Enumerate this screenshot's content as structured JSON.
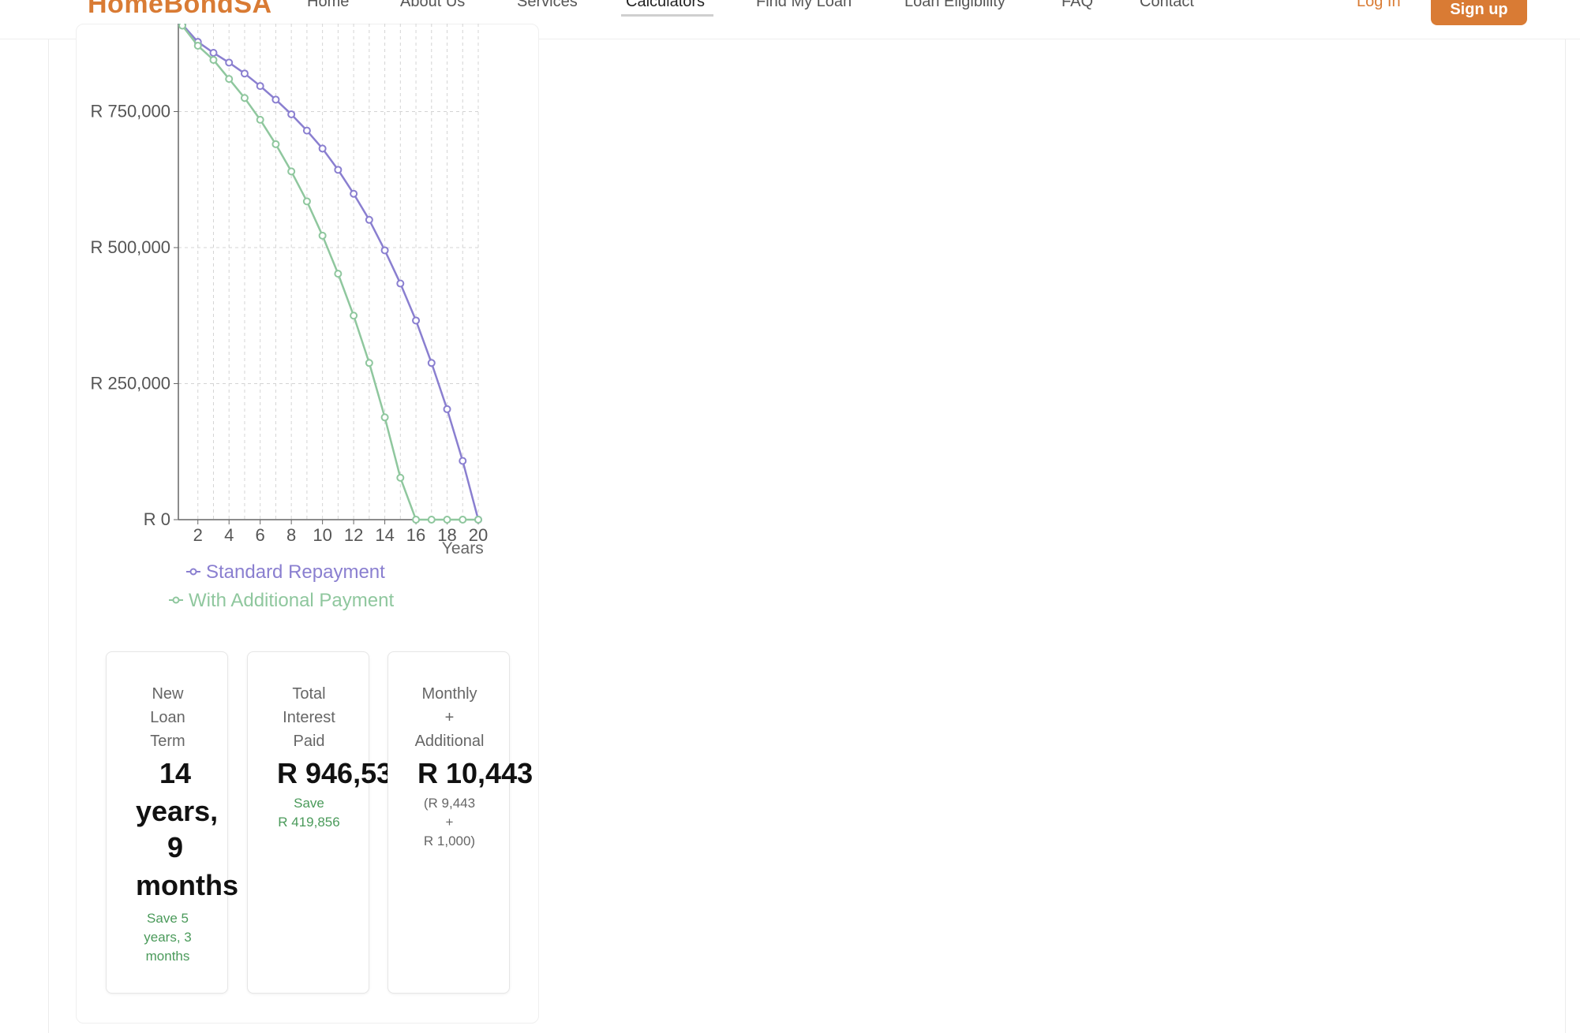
{
  "header": {
    "brand": "HomeBondSA",
    "nav": [
      {
        "label": "Home"
      },
      {
        "label": "About Us"
      },
      {
        "label": "Services"
      },
      {
        "label": "Calculators"
      },
      {
        "label": "Find My Loan"
      },
      {
        "label": "Loan Eligibility"
      },
      {
        "label": "FAQ"
      },
      {
        "label": "Contact"
      }
    ],
    "login_label": "Log In",
    "signup_label": "Sign up"
  },
  "colors": {
    "brand": "#d97b34",
    "standard_series": "#8a7fd0",
    "additional_series": "#8fc79e",
    "savings_text": "#4a9a5a"
  },
  "chart_data": {
    "type": "line",
    "xlabel": "Years",
    "ylabel": "",
    "x_ticks": [
      2,
      4,
      6,
      8,
      10,
      12,
      14,
      16,
      18,
      20
    ],
    "y_ticks": [
      0,
      250000,
      500000,
      750000
    ],
    "y_tick_labels": [
      "R 0",
      "R 250,000",
      "R 500,000",
      "R 750,000"
    ],
    "xlim": [
      1,
      20
    ],
    "ylim": [
      0,
      900000
    ],
    "grid": true,
    "legend_position": "bottom",
    "series": [
      {
        "name": "Standard Repayment",
        "color": "#8a7fd0",
        "x": [
          1,
          2,
          3,
          4,
          5,
          6,
          7,
          8,
          9,
          10,
          11,
          12,
          13,
          14,
          15,
          16,
          17,
          18,
          19,
          20
        ],
        "values": [
          910000,
          878000,
          858000,
          840000,
          820000,
          797000,
          772000,
          745000,
          715000,
          682000,
          643000,
          599000,
          551000,
          495000,
          434000,
          366000,
          288000,
          203000,
          108000,
          0
        ]
      },
      {
        "name": "With Additional Payment",
        "color": "#8fc79e",
        "x": [
          1,
          2,
          3,
          4,
          5,
          6,
          7,
          8,
          9,
          10,
          11,
          12,
          13,
          14,
          15,
          16,
          17,
          18,
          19,
          20
        ],
        "values": [
          908000,
          871000,
          845000,
          810000,
          775000,
          735000,
          690000,
          640000,
          585000,
          522000,
          452000,
          375000,
          288000,
          188000,
          77000,
          0,
          0,
          0,
          0,
          0
        ]
      }
    ]
  },
  "stats": [
    {
      "label_lines": [
        "New",
        "Loan",
        "Term"
      ],
      "value_lines": [
        "14",
        "years,",
        "9",
        "months"
      ],
      "note_lines": [
        "Save 5",
        "years, 3",
        "months"
      ]
    },
    {
      "label_lines": [
        "Total",
        "Interest",
        "Paid"
      ],
      "value_lines": [
        "R 946,53"
      ],
      "note_lines": [
        "Save",
        "R 419,856"
      ]
    },
    {
      "label_lines": [
        "Monthly",
        "+",
        "Additional"
      ],
      "value_lines": [
        "R 10,443"
      ],
      "note_lines": [
        "(R 9,443",
        "+",
        "R 1,000)"
      ]
    }
  ]
}
